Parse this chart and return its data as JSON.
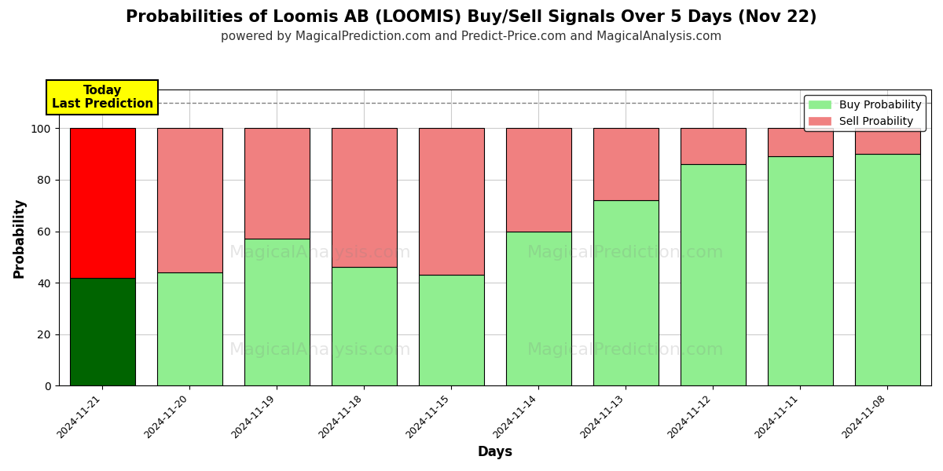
{
  "title": "Probabilities of Loomis AB (LOOMIS) Buy/Sell Signals Over 5 Days (Nov 22)",
  "subtitle": "powered by MagicalPrediction.com and Predict-Price.com and MagicalAnalysis.com",
  "xlabel": "Days",
  "ylabel": "Probability",
  "categories": [
    "2024-11-21",
    "2024-11-20",
    "2024-11-19",
    "2024-11-18",
    "2024-11-15",
    "2024-11-14",
    "2024-11-13",
    "2024-11-12",
    "2024-11-11",
    "2024-11-08"
  ],
  "buy_values": [
    42,
    44,
    57,
    46,
    43,
    60,
    72,
    86,
    89,
    90
  ],
  "sell_values": [
    58,
    56,
    43,
    54,
    57,
    40,
    28,
    14,
    11,
    10
  ],
  "today_buy_color": "#006400",
  "today_sell_color": "#ff0000",
  "buy_color": "#90EE90",
  "sell_color": "#F08080",
  "today_annotation_text": "Today\nLast Prediction",
  "today_annotation_bg": "#ffff00",
  "legend_buy_label": "Buy Probability",
  "legend_sell_label": "Sell Proability",
  "ylim": [
    0,
    115
  ],
  "yticks": [
    0,
    20,
    40,
    60,
    80,
    100
  ],
  "dashed_line_y": 110,
  "watermark_text1": "MagicalAnalysis.com",
  "watermark_text2": "MagicalPrediction.com",
  "background_color": "#ffffff",
  "grid_color": "#cccccc",
  "title_fontsize": 15,
  "subtitle_fontsize": 11,
  "bar_edgecolor": "#000000"
}
